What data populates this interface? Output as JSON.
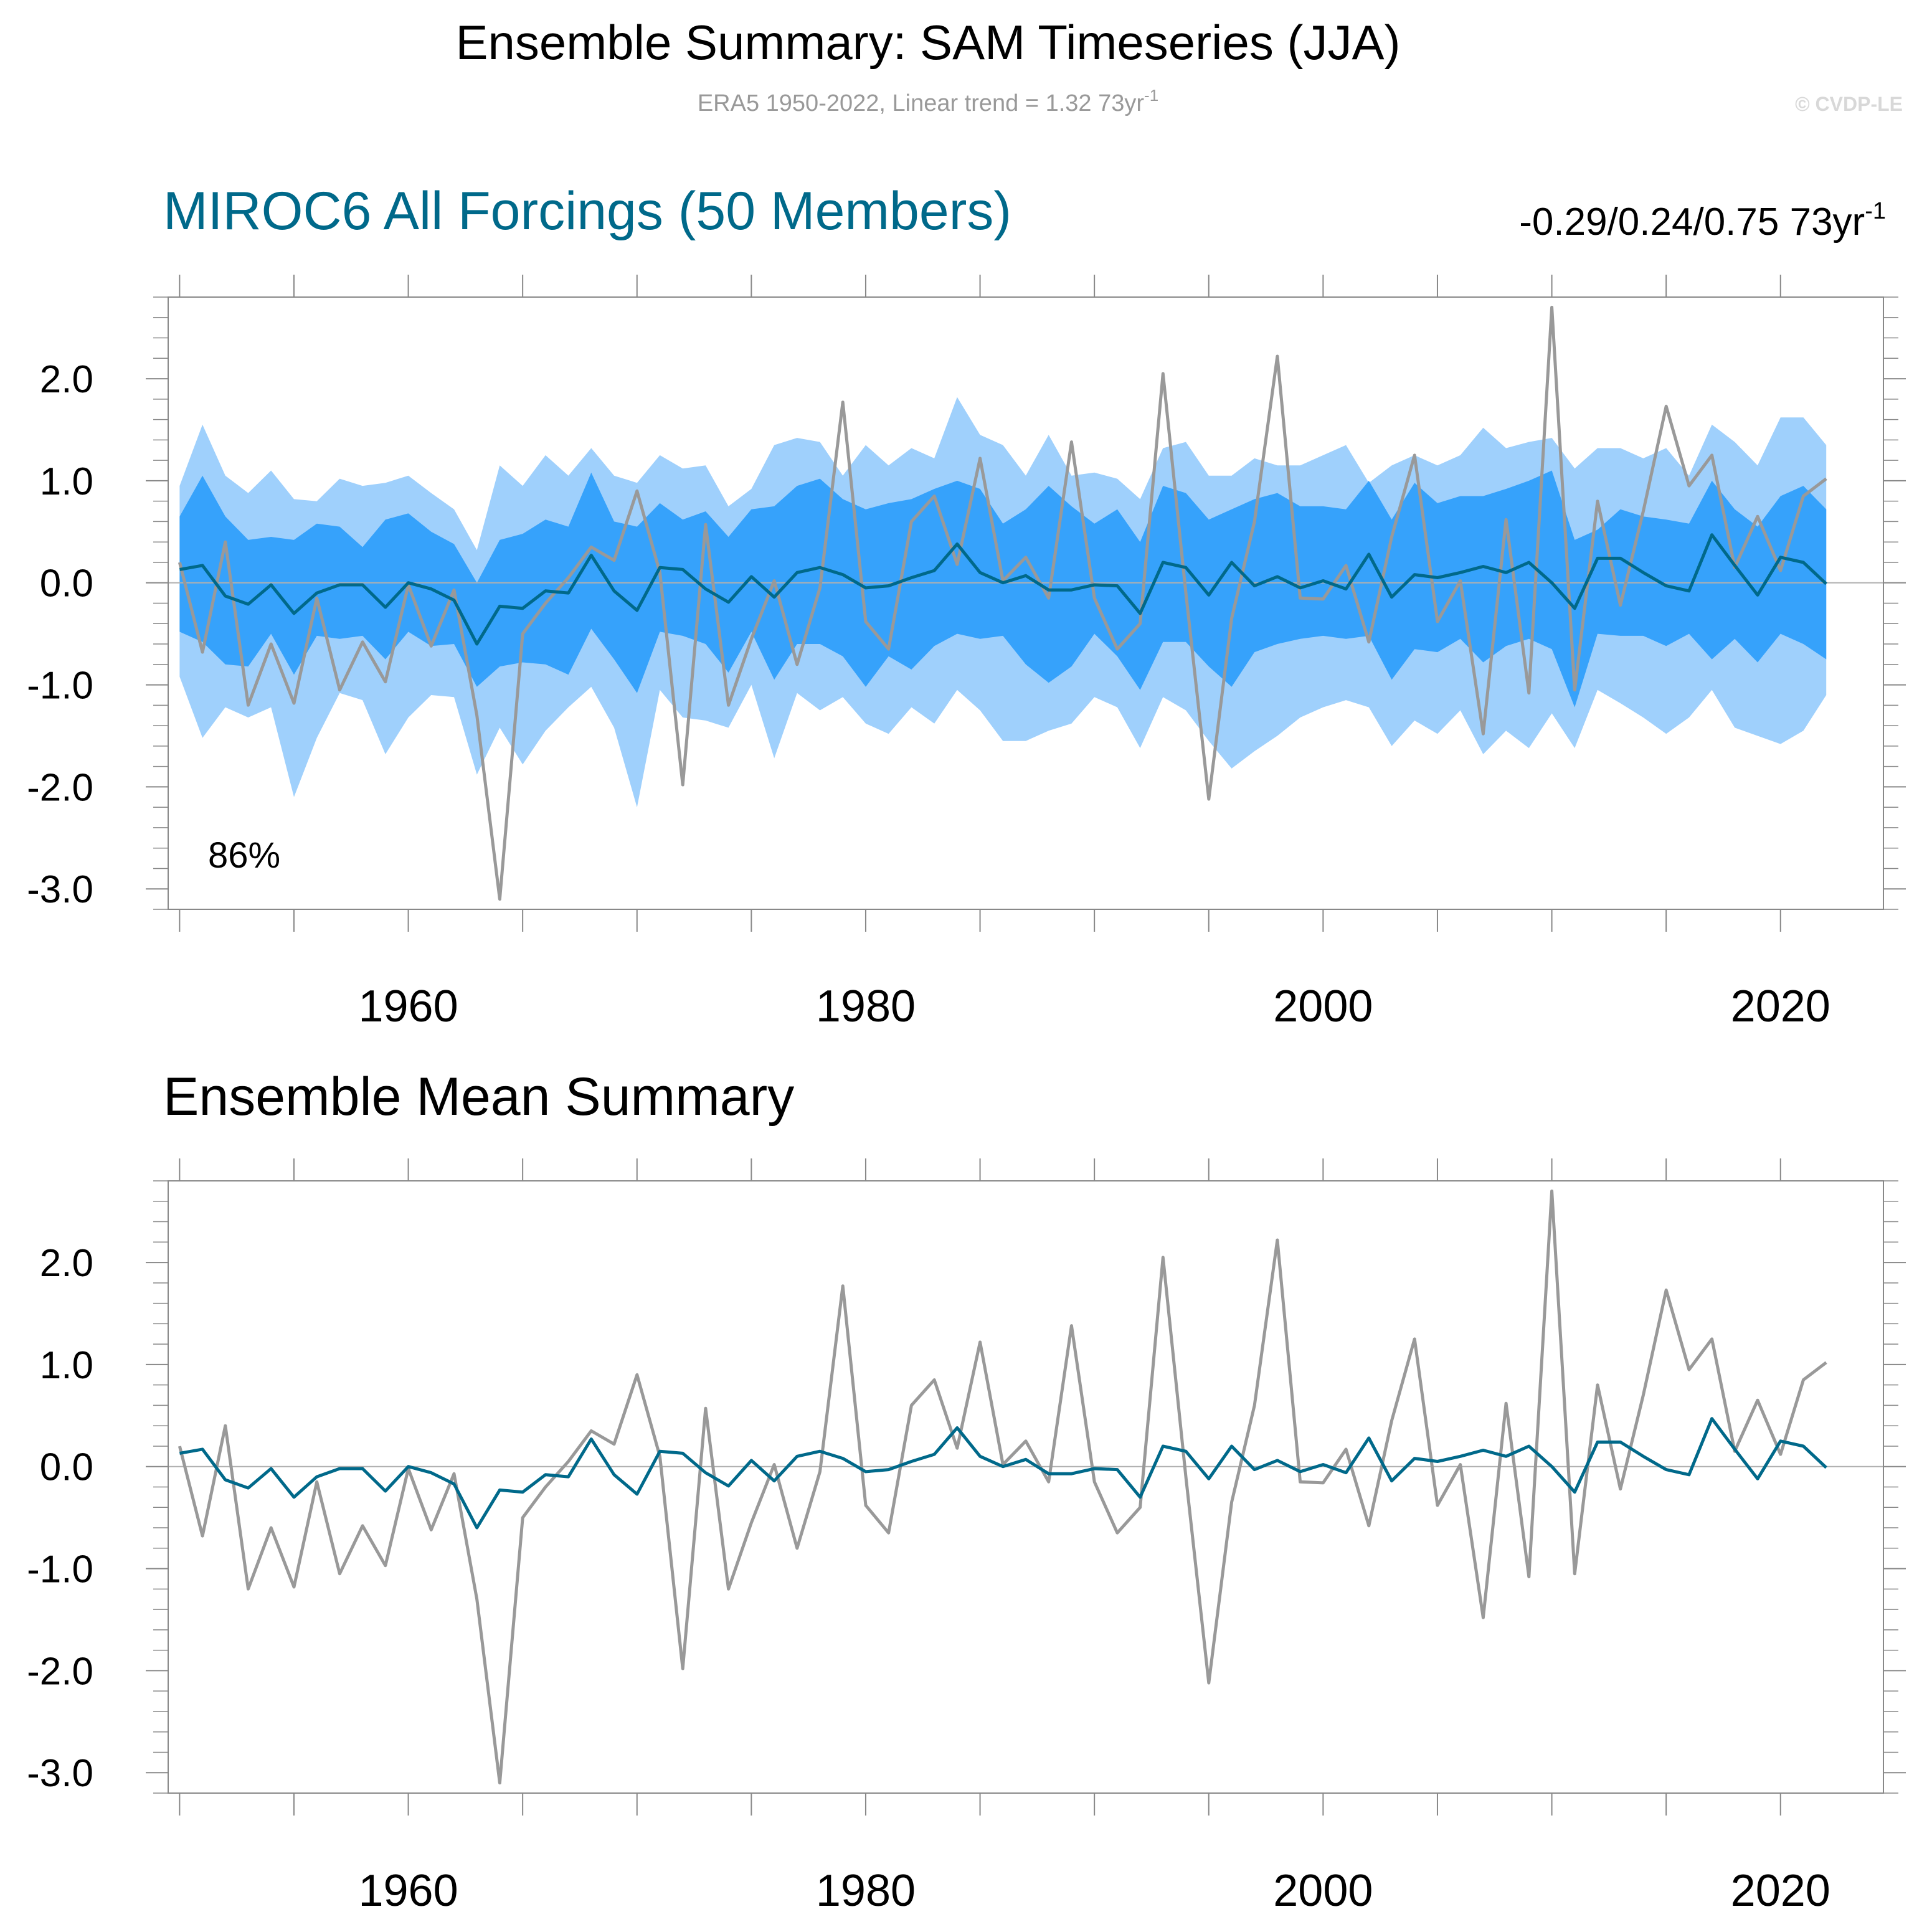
{
  "title": "Ensemble Summary: SAM Timeseries (JJA)",
  "subtitle": {
    "text": "ERA5 1950-2022, Linear trend = 1.32 73yr",
    "superscript": "-1"
  },
  "watermark": "© CVDP-LE",
  "colors": {
    "obs": "#999999",
    "ens_mean": "#00698a",
    "band_outer": "#9fd0fc",
    "band_inner": "#36a2fb",
    "model_title": "#00698a",
    "axis": "#888888",
    "zero_line": "#b0b0b0",
    "text": "#000000",
    "subtitle": "#999999",
    "watermark": "#d8d8d8"
  },
  "chart_data": [
    {
      "type": "line",
      "name": "ensemble-summary",
      "title": "MIROC6 All Forcings (50 Members)",
      "trend_label": "-0.29/0.24/0.75 73yr",
      "trend_superscript": "-1",
      "percent_label": "86%",
      "x_start": 1950,
      "xlim": [
        1949.5,
        2024.5
      ],
      "ylim": [
        -3.2,
        2.8
      ],
      "xticks": [
        1960,
        1980,
        2000,
        2020
      ],
      "yticks": [
        -3,
        -2,
        -1,
        0,
        1,
        2
      ],
      "ytick_labels": [
        "-3.0",
        "-2.0",
        "-1.0",
        "0.0",
        "1.0",
        "2.0"
      ],
      "series": [
        {
          "name": "ERA5",
          "role": "obs",
          "values": [
            0.2,
            -0.68,
            0.4,
            -1.2,
            -0.6,
            -1.18,
            -0.15,
            -1.05,
            -0.58,
            -0.97,
            -0.02,
            -0.62,
            -0.07,
            -1.3,
            -3.1,
            -0.5,
            -0.2,
            0.05,
            0.35,
            0.22,
            0.9,
            0.1,
            -1.98,
            0.57,
            -1.2,
            -0.55,
            0.02,
            -0.8,
            -0.05,
            1.77,
            -0.38,
            -0.65,
            0.6,
            0.85,
            0.18,
            1.22,
            0.02,
            0.25,
            -0.15,
            1.38,
            -0.15,
            -0.65,
            -0.4,
            2.05,
            -0.1,
            -2.12,
            -0.35,
            0.6,
            2.22,
            -0.15,
            -0.16,
            0.17,
            -0.58,
            0.45,
            1.25,
            -0.38,
            0.02,
            -1.48,
            0.62,
            -1.08,
            2.7,
            -1.05,
            0.8,
            -0.22,
            0.7,
            1.73,
            0.95,
            1.25,
            0.15,
            0.65,
            0.12,
            0.85,
            1.02
          ]
        },
        {
          "name": "Ensemble mean",
          "role": "ens_mean",
          "values": [
            0.13,
            0.17,
            -0.13,
            -0.21,
            -0.02,
            -0.3,
            -0.1,
            -0.02,
            -0.02,
            -0.24,
            0.0,
            -0.06,
            -0.17,
            -0.6,
            -0.23,
            -0.25,
            -0.08,
            -0.1,
            0.27,
            -0.08,
            -0.27,
            0.15,
            0.13,
            -0.06,
            -0.19,
            0.06,
            -0.14,
            0.1,
            0.15,
            0.08,
            -0.05,
            -0.03,
            0.05,
            0.12,
            0.38,
            0.1,
            0.0,
            0.07,
            -0.07,
            -0.07,
            -0.02,
            -0.03,
            -0.3,
            0.2,
            0.15,
            -0.12,
            0.2,
            -0.03,
            0.06,
            -0.05,
            0.02,
            -0.06,
            0.28,
            -0.14,
            0.08,
            0.05,
            0.1,
            0.16,
            0.1,
            0.2,
            0.0,
            -0.25,
            0.24,
            0.24,
            0.1,
            -0.03,
            -0.08,
            0.47,
            0.17,
            -0.12,
            0.25,
            0.2,
            -0.01
          ]
        },
        {
          "name": "Max",
          "role": "band_outer_upper",
          "values": [
            0.95,
            1.55,
            1.05,
            0.88,
            1.1,
            0.82,
            0.8,
            1.02,
            0.95,
            0.98,
            1.05,
            0.88,
            0.72,
            0.32,
            1.15,
            0.95,
            1.25,
            1.05,
            1.32,
            1.05,
            0.98,
            1.25,
            1.12,
            1.15,
            0.75,
            0.92,
            1.35,
            1.42,
            1.38,
            1.05,
            1.35,
            1.15,
            1.32,
            1.22,
            1.82,
            1.45,
            1.35,
            1.05,
            1.45,
            1.05,
            1.08,
            1.02,
            0.82,
            1.32,
            1.38,
            1.05,
            1.05,
            1.22,
            1.15,
            1.15,
            1.25,
            1.35,
            0.98,
            1.15,
            1.25,
            1.15,
            1.25,
            1.52,
            1.32,
            1.38,
            1.42,
            1.12,
            1.32,
            1.32,
            1.22,
            1.32,
            1.05,
            1.55,
            1.38,
            1.15,
            1.62,
            1.62,
            1.35
          ]
        },
        {
          "name": "Upper inner",
          "role": "band_inner_upper",
          "values": [
            0.65,
            1.05,
            0.65,
            0.42,
            0.45,
            0.42,
            0.58,
            0.55,
            0.35,
            0.62,
            0.68,
            0.5,
            0.38,
            0.0,
            0.42,
            0.48,
            0.62,
            0.55,
            1.08,
            0.6,
            0.55,
            0.78,
            0.62,
            0.7,
            0.45,
            0.72,
            0.75,
            0.95,
            1.02,
            0.82,
            0.72,
            0.78,
            0.82,
            0.92,
            1.0,
            0.92,
            0.58,
            0.72,
            0.95,
            0.75,
            0.58,
            0.72,
            0.4,
            0.95,
            0.88,
            0.62,
            0.72,
            0.82,
            0.88,
            0.75,
            0.75,
            0.72,
            1.0,
            0.62,
            0.98,
            0.78,
            0.85,
            0.85,
            0.92,
            1.0,
            1.1,
            0.42,
            0.52,
            0.72,
            0.65,
            0.62,
            0.58,
            1.0,
            0.72,
            0.55,
            0.85,
            0.95,
            0.72
          ]
        },
        {
          "name": "Lower inner",
          "role": "band_inner_lower",
          "values": [
            -0.48,
            -0.58,
            -0.8,
            -0.82,
            -0.5,
            -0.9,
            -0.52,
            -0.55,
            -0.52,
            -0.75,
            -0.48,
            -0.62,
            -0.6,
            -1.02,
            -0.82,
            -0.78,
            -0.8,
            -0.9,
            -0.45,
            -0.75,
            -1.08,
            -0.48,
            -0.52,
            -0.6,
            -0.88,
            -0.48,
            -0.95,
            -0.6,
            -0.6,
            -0.72,
            -1.02,
            -0.72,
            -0.85,
            -0.62,
            -0.5,
            -0.55,
            -0.52,
            -0.8,
            -0.98,
            -0.82,
            -0.5,
            -0.72,
            -1.05,
            -0.58,
            -0.58,
            -0.82,
            -1.02,
            -0.68,
            -0.6,
            -0.55,
            -0.52,
            -0.55,
            -0.52,
            -0.95,
            -0.65,
            -0.68,
            -0.55,
            -0.78,
            -0.62,
            -0.55,
            -0.65,
            -1.22,
            -0.5,
            -0.52,
            -0.52,
            -0.62,
            -0.5,
            -0.75,
            -0.55,
            -0.78,
            -0.5,
            -0.6,
            -0.75
          ]
        },
        {
          "name": "Min",
          "role": "band_outer_lower",
          "values": [
            -0.92,
            -1.52,
            -1.22,
            -1.32,
            -1.22,
            -2.1,
            -1.52,
            -1.08,
            -1.15,
            -1.68,
            -1.32,
            -1.1,
            -1.12,
            -1.88,
            -1.42,
            -1.78,
            -1.45,
            -1.22,
            -1.02,
            -1.42,
            -2.2,
            -1.05,
            -1.32,
            -1.35,
            -1.42,
            -1.0,
            -1.72,
            -1.08,
            -1.25,
            -1.12,
            -1.38,
            -1.48,
            -1.22,
            -1.38,
            -1.05,
            -1.25,
            -1.55,
            -1.55,
            -1.45,
            -1.38,
            -1.12,
            -1.22,
            -1.62,
            -1.12,
            -1.25,
            -1.55,
            -1.82,
            -1.65,
            -1.5,
            -1.32,
            -1.22,
            -1.15,
            -1.22,
            -1.6,
            -1.35,
            -1.48,
            -1.25,
            -1.68,
            -1.45,
            -1.62,
            -1.28,
            -1.62,
            -1.05,
            -1.18,
            -1.32,
            -1.48,
            -1.32,
            -1.05,
            -1.42,
            -1.5,
            -1.58,
            -1.45,
            -1.1
          ]
        }
      ]
    },
    {
      "type": "line",
      "name": "ensemble-mean-summary",
      "title": "Ensemble Mean Summary",
      "x_start": 1950,
      "xlim": [
        1949.5,
        2024.5
      ],
      "ylim": [
        -3.2,
        2.8
      ],
      "xticks": [
        1960,
        1980,
        2000,
        2020
      ],
      "yticks": [
        -3,
        -2,
        -1,
        0,
        1,
        2
      ],
      "ytick_labels": [
        "-3.0",
        "-2.0",
        "-1.0",
        "0.0",
        "1.0",
        "2.0"
      ],
      "series": [
        {
          "name": "ERA5",
          "role": "obs",
          "values": [
            0.2,
            -0.68,
            0.4,
            -1.2,
            -0.6,
            -1.18,
            -0.15,
            -1.05,
            -0.58,
            -0.97,
            -0.02,
            -0.62,
            -0.07,
            -1.3,
            -3.1,
            -0.5,
            -0.2,
            0.05,
            0.35,
            0.22,
            0.9,
            0.1,
            -1.98,
            0.57,
            -1.2,
            -0.55,
            0.02,
            -0.8,
            -0.05,
            1.77,
            -0.38,
            -0.65,
            0.6,
            0.85,
            0.18,
            1.22,
            0.02,
            0.25,
            -0.15,
            1.38,
            -0.15,
            -0.65,
            -0.4,
            2.05,
            -0.1,
            -2.12,
            -0.35,
            0.6,
            2.22,
            -0.15,
            -0.16,
            0.17,
            -0.58,
            0.45,
            1.25,
            -0.38,
            0.02,
            -1.48,
            0.62,
            -1.08,
            2.7,
            -1.05,
            0.8,
            -0.22,
            0.7,
            1.73,
            0.95,
            1.25,
            0.15,
            0.65,
            0.12,
            0.85,
            1.02
          ]
        },
        {
          "name": "Ensemble mean",
          "role": "ens_mean",
          "values": [
            0.13,
            0.17,
            -0.13,
            -0.21,
            -0.02,
            -0.3,
            -0.1,
            -0.02,
            -0.02,
            -0.24,
            0.0,
            -0.06,
            -0.17,
            -0.6,
            -0.23,
            -0.25,
            -0.08,
            -0.1,
            0.27,
            -0.08,
            -0.27,
            0.15,
            0.13,
            -0.06,
            -0.19,
            0.06,
            -0.14,
            0.1,
            0.15,
            0.08,
            -0.05,
            -0.03,
            0.05,
            0.12,
            0.38,
            0.1,
            0.0,
            0.07,
            -0.07,
            -0.07,
            -0.02,
            -0.03,
            -0.3,
            0.2,
            0.15,
            -0.12,
            0.2,
            -0.03,
            0.06,
            -0.05,
            0.02,
            -0.06,
            0.28,
            -0.14,
            0.08,
            0.05,
            0.1,
            0.16,
            0.1,
            0.2,
            0.0,
            -0.25,
            0.24,
            0.24,
            0.1,
            -0.03,
            -0.08,
            0.47,
            0.17,
            -0.12,
            0.25,
            0.2,
            -0.01
          ]
        }
      ]
    }
  ]
}
